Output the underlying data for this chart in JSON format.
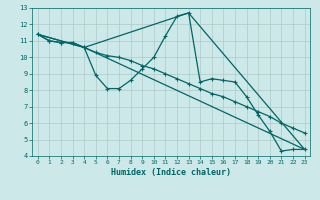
{
  "xlabel": "Humidex (Indice chaleur)",
  "ylabel": "",
  "bg_color": "#cce8e8",
  "grid_color": "#b0c8c8",
  "line_color": "#006666",
  "xlim": [
    -0.5,
    23.5
  ],
  "ylim": [
    4,
    13
  ],
  "yticks": [
    4,
    5,
    6,
    7,
    8,
    9,
    10,
    11,
    12,
    13
  ],
  "xticks": [
    0,
    1,
    2,
    3,
    4,
    5,
    6,
    7,
    8,
    9,
    10,
    11,
    12,
    13,
    14,
    15,
    16,
    17,
    18,
    19,
    20,
    21,
    22,
    23
  ],
  "line1_x": [
    0,
    1,
    2,
    3,
    4,
    5,
    6,
    7,
    8,
    9,
    10,
    11,
    12,
    13,
    14,
    15,
    16,
    17,
    18,
    19,
    20,
    21,
    22,
    23
  ],
  "line1_y": [
    11.4,
    11.0,
    10.9,
    10.9,
    10.6,
    8.9,
    8.1,
    8.1,
    8.6,
    9.3,
    10.0,
    11.3,
    12.5,
    12.7,
    8.5,
    8.7,
    8.6,
    8.5,
    7.6,
    6.5,
    5.5,
    4.3,
    4.4,
    4.4
  ],
  "line2_x": [
    0,
    1,
    2,
    3,
    4,
    5,
    6,
    7,
    8,
    9,
    10,
    11,
    12,
    13,
    14,
    15,
    16,
    17,
    18,
    19,
    20,
    21,
    22,
    23
  ],
  "line2_y": [
    11.4,
    11.0,
    10.9,
    10.9,
    10.6,
    10.3,
    10.1,
    10.0,
    9.8,
    9.5,
    9.3,
    9.0,
    8.7,
    8.4,
    8.1,
    7.8,
    7.6,
    7.3,
    7.0,
    6.7,
    6.4,
    6.0,
    5.7,
    5.4
  ],
  "line3_x": [
    0,
    4,
    13,
    23
  ],
  "line3_y": [
    11.4,
    10.6,
    12.7,
    4.4
  ],
  "line4_x": [
    0,
    4,
    23
  ],
  "line4_y": [
    11.4,
    10.6,
    4.4
  ]
}
